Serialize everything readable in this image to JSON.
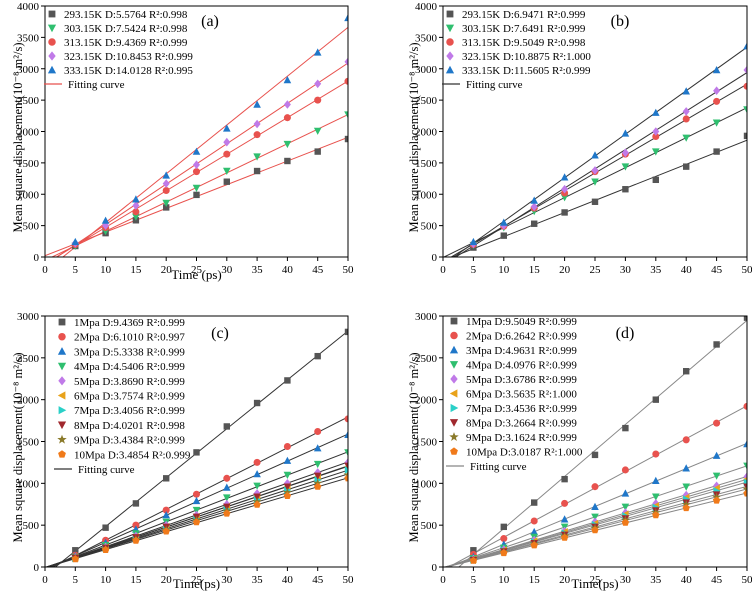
{
  "chart_data": [
    {
      "type": "scatter",
      "panel_label": "(a)",
      "xlabel": "Time (ps)",
      "ylabel": "Mean square displacement(10⁻⁸ m²/s)",
      "xlim": [
        0,
        50
      ],
      "ylim": [
        0,
        4000
      ],
      "xticks": [
        0,
        5,
        10,
        15,
        20,
        25,
        30,
        35,
        40,
        45,
        50
      ],
      "yticks": [
        0,
        500,
        1000,
        1500,
        2000,
        2500,
        3000,
        3500,
        4000
      ],
      "legend_position": "top-left",
      "fit_legend_label": "Fitting curve",
      "fit_color": "#e8524e",
      "x": [
        5,
        10,
        15,
        20,
        25,
        30,
        35,
        40,
        45,
        50
      ],
      "series": [
        {
          "name": "293.15K",
          "legend": "293.15K  D:5.5764  R²:0.998",
          "marker": "square",
          "color": "#555555",
          "values": [
            175,
            380,
            585,
            790,
            990,
            1200,
            1370,
            1530,
            1680,
            1880
          ]
        },
        {
          "name": "303.15K",
          "legend": "303.15K  D:7.5424  R²:0.998",
          "marker": "triangle-down",
          "color": "#2fbf6f",
          "values": [
            175,
            410,
            640,
            860,
            1100,
            1370,
            1600,
            1800,
            2010,
            2270
          ]
        },
        {
          "name": "313.15K",
          "legend": "313.15K  D:9.4369  R²:0.999",
          "marker": "circle",
          "color": "#e8524e",
          "values": [
            200,
            470,
            720,
            1060,
            1360,
            1640,
            1950,
            2220,
            2500,
            2800
          ]
        },
        {
          "name": "323.15K",
          "legend": "323.15K  D:10.8453  R²:0.999",
          "marker": "diamond",
          "color": "#c07ae8",
          "values": [
            220,
            500,
            820,
            1170,
            1470,
            1830,
            2120,
            2430,
            2760,
            3110
          ]
        },
        {
          "name": "333.15K",
          "legend": "333.15K  D:14.0128  R²:0.995",
          "marker": "triangle-up",
          "color": "#1f77c9",
          "values": [
            240,
            580,
            920,
            1300,
            1680,
            2050,
            2430,
            2820,
            3260,
            3810
          ]
        }
      ]
    },
    {
      "type": "scatter",
      "panel_label": "(b)",
      "xlabel": "",
      "ylabel": "Mean square displacement(10⁻⁸ m²/s)",
      "xlim": [
        0,
        50
      ],
      "ylim": [
        0,
        4000
      ],
      "xticks": [
        0,
        5,
        10,
        15,
        20,
        25,
        30,
        35,
        40,
        45,
        50
      ],
      "yticks": [
        0,
        500,
        1000,
        1500,
        2000,
        2500,
        3000,
        3500,
        4000
      ],
      "legend_position": "top-left",
      "fit_legend_label": "Fitting curve",
      "fit_color": "#333333",
      "x": [
        5,
        10,
        15,
        20,
        25,
        30,
        35,
        40,
        45,
        50
      ],
      "series": [
        {
          "name": "293.15K",
          "legend": "293.15K  D:6.9471  R²:0.999",
          "marker": "square",
          "color": "#555555",
          "values": [
            150,
            340,
            530,
            710,
            880,
            1080,
            1230,
            1440,
            1680,
            1930
          ]
        },
        {
          "name": "303.15K",
          "legend": "303.15K  D:7.6491  R²:0.999",
          "marker": "triangle-down",
          "color": "#2fbf6f",
          "values": [
            190,
            470,
            730,
            950,
            1200,
            1440,
            1680,
            1900,
            2140,
            2350
          ]
        },
        {
          "name": "313.15K",
          "legend": "313.15K  D:9.5049  R²:0.998",
          "marker": "circle",
          "color": "#e8524e",
          "values": [
            200,
            490,
            780,
            1020,
            1360,
            1640,
            1920,
            2200,
            2480,
            2720
          ]
        },
        {
          "name": "323.15K",
          "legend": "323.15K  D:10.8875  R²:1.000",
          "marker": "diamond",
          "color": "#c07ae8",
          "values": [
            210,
            500,
            800,
            1080,
            1380,
            1660,
            2000,
            2320,
            2650,
            2980
          ]
        },
        {
          "name": "333.15K",
          "legend": "333.15K  D:11.5605  R²:0.999",
          "marker": "triangle-up",
          "color": "#1f77c9",
          "values": [
            240,
            550,
            900,
            1270,
            1620,
            1970,
            2300,
            2640,
            2980,
            3360
          ]
        }
      ]
    },
    {
      "type": "scatter",
      "panel_label": "(c)",
      "xlabel": "Time(ps)",
      "ylabel": "Mean square displacement(10⁻⁸ m²/s)",
      "xlim": [
        0,
        50
      ],
      "ylim": [
        0,
        3000
      ],
      "xticks": [
        0,
        5,
        10,
        15,
        20,
        25,
        30,
        35,
        40,
        45,
        50
      ],
      "yticks": [
        0,
        500,
        1000,
        1500,
        2000,
        2500,
        3000
      ],
      "legend_position": "top-left",
      "fit_legend_label": "Fitting curve",
      "fit_color": "#333333",
      "x": [
        5,
        10,
        15,
        20,
        25,
        30,
        35,
        40,
        45,
        50
      ],
      "series": [
        {
          "name": "1Mpa",
          "legend": "1Mpa  D:9.4369  R²:0.999",
          "marker": "square",
          "color": "#555555",
          "values": [
            200,
            470,
            760,
            1060,
            1370,
            1680,
            1960,
            2230,
            2520,
            2810
          ]
        },
        {
          "name": "2Mpa",
          "legend": "2Mpa  D:6.1010  R²:0.997",
          "marker": "circle",
          "color": "#e8524e",
          "values": [
            140,
            320,
            500,
            680,
            870,
            1060,
            1250,
            1440,
            1620,
            1770
          ]
        },
        {
          "name": "3Mpa",
          "legend": "3Mpa  D:5.3338  R²:0.999",
          "marker": "triangle-up",
          "color": "#1f77c9",
          "values": [
            130,
            290,
            450,
            620,
            790,
            950,
            1110,
            1270,
            1420,
            1580
          ]
        },
        {
          "name": "4Mpa",
          "legend": "4Mpa  D:4.5406  R²:0.999",
          "marker": "triangle-down",
          "color": "#2fbf6f",
          "values": [
            120,
            260,
            400,
            540,
            680,
            830,
            970,
            1100,
            1230,
            1370
          ]
        },
        {
          "name": "5Mpa",
          "legend": "5Mpa  D:3.8690  R²:0.999",
          "marker": "diamond",
          "color": "#c07ae8",
          "values": [
            115,
            240,
            370,
            500,
            620,
            750,
            880,
            1000,
            1130,
            1250
          ]
        },
        {
          "name": "6Mpa",
          "legend": "6Mpa  D:3.7574  R²:0.999",
          "marker": "triangle-left",
          "color": "#e8a21a",
          "values": [
            110,
            235,
            360,
            480,
            600,
            720,
            840,
            960,
            1080,
            1200
          ]
        },
        {
          "name": "7Mpa",
          "legend": "7Mpa  D:3.4056  R²:0.999",
          "marker": "triangle-right",
          "color": "#2ad0c8",
          "values": [
            105,
            225,
            345,
            460,
            575,
            690,
            805,
            920,
            1040,
            1160
          ]
        },
        {
          "name": "8Mpa",
          "legend": "8Mpa  D:4.0201  R²:0.998",
          "marker": "triangle-down",
          "color": "#a0282e",
          "values": [
            110,
            230,
            355,
            480,
            600,
            720,
            840,
            960,
            1090,
            1210
          ]
        },
        {
          "name": "9Mpa",
          "legend": "9Mpa  D:3.4384  R²:0.999",
          "marker": "star",
          "color": "#8a7a2a",
          "values": [
            100,
            215,
            330,
            445,
            560,
            670,
            780,
            890,
            1000,
            1100
          ]
        },
        {
          "name": "10Mpa",
          "legend": "10Mpa D:3.4854  R²:0.999",
          "marker": "pentagon",
          "color": "#f07a1a",
          "values": [
            95,
            205,
            315,
            425,
            535,
            640,
            745,
            850,
            960,
            1060
          ]
        }
      ]
    },
    {
      "type": "scatter",
      "panel_label": "(d)",
      "xlabel": "Time(ps)",
      "ylabel": "Mean square displacement(10⁻⁸ m²/s)",
      "xlim": [
        0,
        50
      ],
      "ylim": [
        0,
        3000
      ],
      "xticks": [
        0,
        5,
        10,
        15,
        20,
        25,
        30,
        35,
        40,
        45,
        50
      ],
      "yticks": [
        0,
        500,
        1000,
        1500,
        2000,
        2500,
        3000
      ],
      "legend_position": "top-left",
      "fit_legend_label": "Fitting curve",
      "fit_color": "#888888",
      "x": [
        5,
        10,
        15,
        20,
        25,
        30,
        35,
        40,
        45,
        50
      ],
      "series": [
        {
          "name": "1Mpa",
          "legend": "1Mpa  D:9.5049  R²:0.999",
          "marker": "square",
          "color": "#555555",
          "values": [
            200,
            480,
            770,
            1050,
            1340,
            1660,
            2000,
            2340,
            2660,
            2980
          ]
        },
        {
          "name": "2Mpa",
          "legend": "2Mpa  D:6.2642  R²:0.999",
          "marker": "circle",
          "color": "#e8524e",
          "values": [
            150,
            340,
            550,
            760,
            960,
            1160,
            1350,
            1520,
            1720,
            1920
          ]
        },
        {
          "name": "3Mpa",
          "legend": "3Mpa  D:4.9631  R²:0.999",
          "marker": "triangle-up",
          "color": "#1f77c9",
          "values": [
            120,
            270,
            420,
            570,
            720,
            880,
            1030,
            1180,
            1330,
            1470
          ]
        },
        {
          "name": "4Mpa",
          "legend": "4Mpa  D:4.0976  R²:0.999",
          "marker": "triangle-down",
          "color": "#2fbf6f",
          "values": [
            105,
            230,
            360,
            480,
            600,
            720,
            840,
            960,
            1090,
            1210
          ]
        },
        {
          "name": "5Mpa",
          "legend": "5Mpa  D:3.6786  R²:0.999",
          "marker": "diamond",
          "color": "#c07ae8",
          "values": [
            95,
            210,
            320,
            430,
            540,
            650,
            760,
            860,
            970,
            1080
          ]
        },
        {
          "name": "6Mpa",
          "legend": "6Mpa  D:3.5635  R²:1.000",
          "marker": "triangle-left",
          "color": "#e8a21a",
          "values": [
            90,
            200,
            310,
            420,
            520,
            630,
            730,
            830,
            940,
            1050
          ]
        },
        {
          "name": "7Mpa",
          "legend": "7Mpa  D:3.4536  R²:0.999",
          "marker": "triangle-right",
          "color": "#2ad0c8",
          "values": [
            88,
            195,
            300,
            405,
            505,
            610,
            710,
            810,
            910,
            1010
          ]
        },
        {
          "name": "8Mpa",
          "legend": "8Mpa  D:3.2664  R²:0.999",
          "marker": "triangle-down",
          "color": "#a0282e",
          "values": [
            85,
            185,
            285,
            385,
            480,
            580,
            675,
            770,
            865,
            960
          ]
        },
        {
          "name": "9Mpa",
          "legend": "9Mpa  D:3.1624  R²:0.999",
          "marker": "star",
          "color": "#8a7a2a",
          "values": [
            80,
            178,
            275,
            370,
            465,
            560,
            650,
            745,
            835,
            930
          ]
        },
        {
          "name": "10Mpa",
          "legend": "10Mpa D:3.0187  R²:1.000",
          "marker": "pentagon",
          "color": "#f07a1a",
          "values": [
            75,
            168,
            260,
            350,
            440,
            530,
            620,
            705,
            795,
            880
          ]
        }
      ]
    }
  ]
}
